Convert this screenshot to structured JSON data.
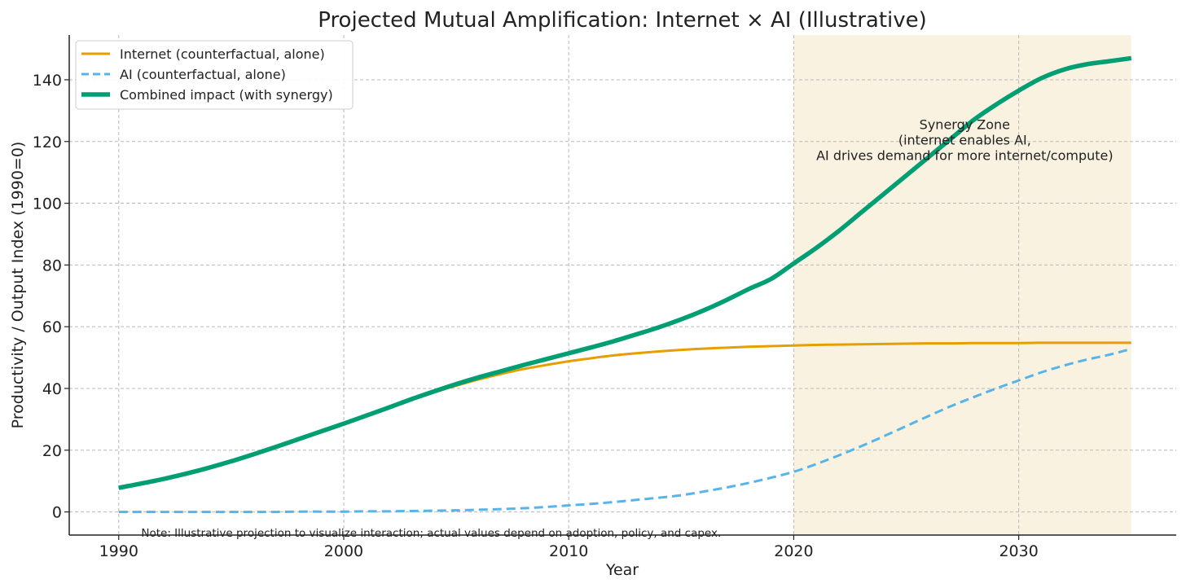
{
  "chart_data": {
    "type": "line",
    "title": "Projected Mutual Amplification: Internet × AI (Illustrative)",
    "xlabel": "Year",
    "ylabel": "Productivity / Output Index (1990=0)",
    "xlim": [
      1987.8,
      2037
    ],
    "ylim": [
      -7.5,
      154.5
    ],
    "xticks": [
      1990,
      2000,
      2010,
      2020,
      2030
    ],
    "yticks": [
      0,
      20,
      40,
      60,
      80,
      100,
      120,
      140
    ],
    "grid": true,
    "legend_position": "top-left",
    "x": [
      1990,
      1991,
      1992,
      1993,
      1994,
      1995,
      1996,
      1997,
      1998,
      1999,
      2000,
      2001,
      2002,
      2003,
      2004,
      2005,
      2006,
      2007,
      2008,
      2009,
      2010,
      2011,
      2012,
      2013,
      2014,
      2015,
      2016,
      2017,
      2018,
      2019,
      2020,
      2021,
      2022,
      2023,
      2024,
      2025,
      2026,
      2027,
      2028,
      2029,
      2030,
      2031,
      2032,
      2033,
      2034,
      2035
    ],
    "series": [
      {
        "name": "Internet (counterfactual, alone)",
        "color": "#E69F00",
        "style": "solid",
        "values": [
          7.8,
          9.2,
          10.7,
          12.4,
          14.3,
          16.4,
          18.7,
          21.1,
          23.6,
          26.1,
          28.6,
          31.2,
          33.8,
          36.3,
          38.7,
          40.9,
          42.9,
          44.7,
          46.3,
          47.6,
          48.8,
          49.8,
          50.7,
          51.4,
          52.0,
          52.5,
          52.9,
          53.2,
          53.5,
          53.7,
          53.9,
          54.1,
          54.2,
          54.3,
          54.4,
          54.5,
          54.6,
          54.6,
          54.7,
          54.7,
          54.7,
          54.8,
          54.8,
          54.8,
          54.8,
          54.8
        ]
      },
      {
        "name": "AI (counterfactual, alone)",
        "color": "#56B4E9",
        "style": "dashed",
        "values": [
          0.0,
          0.0,
          0.0,
          0.0,
          0.0,
          0.0,
          0.0,
          0.0,
          0.1,
          0.1,
          0.1,
          0.2,
          0.2,
          0.3,
          0.4,
          0.5,
          0.7,
          0.9,
          1.2,
          1.6,
          2.1,
          2.6,
          3.2,
          3.9,
          4.6,
          5.4,
          6.6,
          7.9,
          9.4,
          11.1,
          13.0,
          15.5,
          18.3,
          21.3,
          24.5,
          27.8,
          31.1,
          34.3,
          37.2,
          40.0,
          42.6,
          45.2,
          47.4,
          49.3,
          50.9,
          52.8
        ]
      },
      {
        "name": "Combined impact (with synergy)",
        "color": "#009E73",
        "style": "solid-thick",
        "values": [
          7.8,
          9.2,
          10.7,
          12.4,
          14.3,
          16.4,
          18.7,
          21.1,
          23.6,
          26.1,
          28.6,
          31.2,
          33.8,
          36.5,
          39.0,
          41.4,
          43.6,
          45.6,
          47.6,
          49.5,
          51.4,
          53.3,
          55.3,
          57.5,
          59.8,
          62.4,
          65.3,
          68.6,
          72.2,
          75.5,
          80.5,
          85.5,
          91.0,
          97.0,
          103.0,
          109.0,
          115.0,
          121.0,
          127.0,
          132.0,
          136.5,
          140.5,
          143.3,
          145.0,
          146.0,
          147.0
        ]
      }
    ],
    "shaded_region": {
      "x_start": 2020,
      "x_end": 2035,
      "color": "#FAF2E1"
    },
    "annotations": [
      {
        "lines": [
          "Synergy Zone",
          "(internet enables AI,",
          "AI drives demand for more internet/compute)"
        ],
        "x": 2027.6,
        "y": 124
      }
    ],
    "note": {
      "text": "Note: Illustrative projection to visualize interaction; actual values depend on adoption, policy, and capex.",
      "x": 1991
    }
  }
}
